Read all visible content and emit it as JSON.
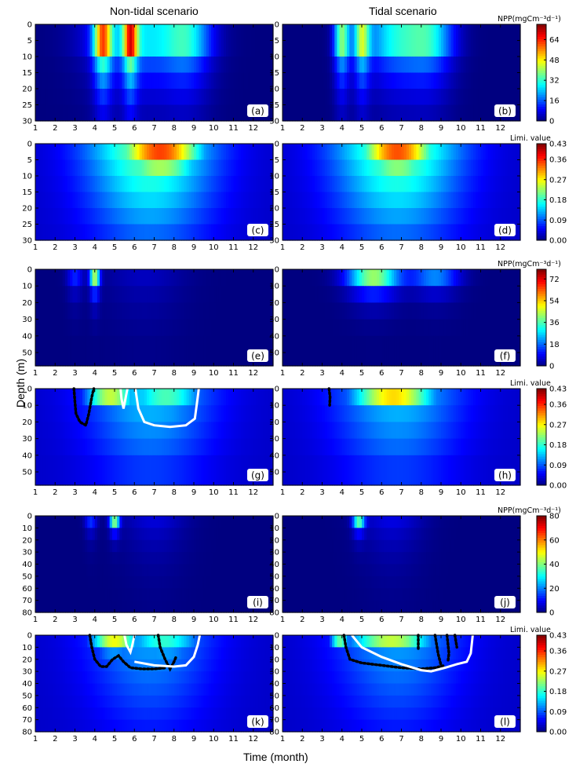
{
  "column_titles": [
    "Non-tidal scenario",
    "Tidal scenario"
  ],
  "xlabel": "Time (month)",
  "ylabel": "Depth (m)",
  "colorbar_labels": {
    "npp": "NPP(mgCm⁻³d⁻¹)",
    "limi": "Limi. value"
  },
  "colors": {
    "colormap": "jet",
    "contour_white": "#ffffff",
    "contour_black": "#000000"
  },
  "chart_data": [
    {
      "type": "heatmap",
      "panel": "(a)",
      "variable": "NPP",
      "scenario": "Non-tidal",
      "ylim": [
        30,
        0
      ],
      "yticks": [
        0,
        5,
        10,
        15,
        20,
        25,
        30
      ],
      "xticks": [
        1,
        2,
        3,
        4,
        5,
        6,
        7,
        8,
        9,
        10,
        11,
        12
      ],
      "cbar": {
        "ticks": [
          0,
          16,
          32,
          48,
          64
        ],
        "vmax": 76
      },
      "events": [
        {
          "center": 4.4,
          "width": 0.45,
          "peak": 76,
          "depth_scale": 11
        },
        {
          "center": 5.8,
          "width": 0.35,
          "peak": 70,
          "depth_scale": 11
        },
        {
          "center": 6.3,
          "width": 2.4,
          "peak": 40,
          "depth_scale": 12
        },
        {
          "center": 8.7,
          "width": 1.2,
          "peak": 34,
          "depth_scale": 12
        }
      ],
      "layer_levels": [
        0,
        10,
        15,
        20,
        25,
        30
      ],
      "contours": []
    },
    {
      "type": "heatmap",
      "panel": "(b)",
      "variable": "NPP",
      "scenario": "Tidal",
      "ylim": [
        30,
        0
      ],
      "yticks": [
        0,
        5,
        10,
        15,
        20,
        25,
        30
      ],
      "xticks": [
        1,
        2,
        3,
        4,
        5,
        6,
        7,
        8,
        9,
        10,
        11,
        12
      ],
      "cbar": {
        "ticks": [
          0,
          16,
          32,
          48,
          64
        ],
        "vmax": 76
      },
      "events": [
        {
          "center": 4.0,
          "width": 0.4,
          "peak": 58,
          "depth_scale": 11
        },
        {
          "center": 5.0,
          "width": 0.4,
          "peak": 56,
          "depth_scale": 11
        },
        {
          "center": 6.7,
          "width": 1.6,
          "peak": 44,
          "depth_scale": 11
        },
        {
          "center": 8.5,
          "width": 1.2,
          "peak": 38,
          "depth_scale": 11
        }
      ],
      "layer_levels": [
        0,
        10,
        15,
        20,
        25,
        30
      ],
      "contours": []
    },
    {
      "type": "heatmap",
      "panel": "(c)",
      "variable": "Limitation",
      "scenario": "Non-tidal",
      "ylim": [
        30,
        0
      ],
      "yticks": [
        0,
        5,
        10,
        15,
        20,
        25,
        30
      ],
      "xticks": [
        1,
        2,
        3,
        4,
        5,
        6,
        7,
        8,
        9,
        10,
        11,
        12
      ],
      "cbar": {
        "ticks": [
          0.0,
          0.09,
          0.18,
          0.27,
          0.36,
          0.43
        ],
        "vmax": 0.43
      },
      "background": 0.2,
      "events": [
        {
          "center": 7.3,
          "width": 2.2,
          "peak": 0.43,
          "depth_scale": 12
        }
      ],
      "layer_levels": [
        0,
        5,
        10,
        15,
        20,
        25,
        30
      ],
      "contours": []
    },
    {
      "type": "heatmap",
      "panel": "(d)",
      "variable": "Limitation",
      "scenario": "Tidal",
      "ylim": [
        30,
        0
      ],
      "yticks": [
        0,
        5,
        10,
        15,
        20,
        25,
        30
      ],
      "xticks": [
        1,
        2,
        3,
        4,
        5,
        6,
        7,
        8,
        9,
        10,
        11,
        12
      ],
      "cbar": {
        "ticks": [
          0.0,
          0.09,
          0.18,
          0.27,
          0.36,
          0.43
        ],
        "vmax": 0.43
      },
      "background": 0.2,
      "events": [
        {
          "center": 6.8,
          "width": 2.0,
          "peak": 0.43,
          "depth_scale": 11
        }
      ],
      "layer_levels": [
        0,
        5,
        10,
        15,
        20,
        25,
        30
      ],
      "contours": []
    },
    {
      "type": "heatmap",
      "panel": "(e)",
      "variable": "NPP",
      "scenario": "Non-tidal",
      "ylim": [
        58,
        0
      ],
      "yticks": [
        0,
        10,
        20,
        30,
        40,
        50
      ],
      "xticks": [
        1,
        2,
        3,
        4,
        5,
        6,
        7,
        8,
        9,
        10,
        11,
        12
      ],
      "cbar": {
        "ticks": [
          0,
          18,
          36,
          54,
          72
        ],
        "vmax": 80
      },
      "events": [
        {
          "center": 4.0,
          "width": 0.25,
          "peak": 80,
          "depth_scale": 8
        },
        {
          "center": 3.0,
          "width": 0.4,
          "peak": 20,
          "depth_scale": 10
        },
        {
          "center": 6.5,
          "width": 2.0,
          "peak": 6,
          "depth_scale": 25
        }
      ],
      "layer_levels": [
        0,
        10,
        20,
        30,
        40,
        58
      ],
      "contours": []
    },
    {
      "type": "heatmap",
      "panel": "(f)",
      "variable": "NPP",
      "scenario": "Tidal",
      "ylim": [
        58,
        0
      ],
      "yticks": [
        0,
        10,
        20,
        30,
        40,
        50
      ],
      "xticks": [
        1,
        2,
        3,
        4,
        5,
        6,
        7,
        8,
        9,
        10,
        11,
        12
      ],
      "cbar": {
        "ticks": [
          0,
          18,
          36,
          54,
          72
        ],
        "vmax": 80
      },
      "events": [
        {
          "center": 5.6,
          "width": 1.3,
          "peak": 78,
          "depth_scale": 8
        },
        {
          "center": 8.7,
          "width": 1.2,
          "peak": 38,
          "depth_scale": 8
        }
      ],
      "layer_levels": [
        0,
        10,
        20,
        30,
        40,
        58
      ],
      "contours": []
    },
    {
      "type": "heatmap",
      "panel": "(g)",
      "variable": "Limitation",
      "scenario": "Non-tidal",
      "ylim": [
        58,
        0
      ],
      "yticks": [
        0,
        10,
        20,
        30,
        40,
        50
      ],
      "xticks": [
        1,
        2,
        3,
        4,
        5,
        6,
        7,
        8,
        9,
        10,
        11,
        12
      ],
      "cbar": {
        "ticks": [
          0.0,
          0.09,
          0.18,
          0.27,
          0.36,
          0.43
        ],
        "vmax": 0.43
      },
      "background": 0.12,
      "events": [
        {
          "center": 4.8,
          "width": 1.3,
          "peak": 0.4,
          "depth_scale": 10
        },
        {
          "center": 7.6,
          "width": 2.0,
          "peak": 0.24,
          "depth_scale": 22
        }
      ],
      "layer_levels": [
        0,
        10,
        20,
        30,
        40,
        58
      ],
      "contours": [
        {
          "color": "black",
          "style": "dotted",
          "points": [
            [
              2.95,
              0
            ],
            [
              3.0,
              8
            ],
            [
              3.05,
              15
            ],
            [
              3.25,
              20
            ],
            [
              3.55,
              22
            ],
            [
              3.7,
              15
            ],
            [
              3.85,
              5
            ],
            [
              3.95,
              0
            ]
          ]
        },
        {
          "color": "white",
          "style": "solid",
          "points": [
            [
              6.05,
              0
            ],
            [
              6.2,
              12
            ],
            [
              6.5,
              20
            ],
            [
              7.0,
              22
            ],
            [
              7.8,
              23
            ],
            [
              8.6,
              22
            ],
            [
              9.05,
              18
            ],
            [
              9.2,
              5
            ],
            [
              9.25,
              0
            ]
          ]
        },
        {
          "color": "white",
          "style": "solid",
          "points": [
            [
              5.3,
              0
            ],
            [
              5.35,
              6
            ],
            [
              5.45,
              12
            ],
            [
              5.55,
              6
            ],
            [
              5.65,
              0
            ]
          ]
        }
      ]
    },
    {
      "type": "heatmap",
      "panel": "(h)",
      "variable": "Limitation",
      "scenario": "Tidal",
      "ylim": [
        58,
        0
      ],
      "yticks": [
        0,
        10,
        20,
        30,
        40,
        50
      ],
      "xticks": [
        1,
        2,
        3,
        4,
        5,
        6,
        7,
        8,
        9,
        10,
        11,
        12
      ],
      "cbar": {
        "ticks": [
          0.0,
          0.09,
          0.18,
          0.27,
          0.36,
          0.43
        ],
        "vmax": 0.43
      },
      "background": 0.12,
      "events": [
        {
          "center": 6.6,
          "width": 2.2,
          "peak": 0.43,
          "depth_scale": 12
        }
      ],
      "layer_levels": [
        0,
        10,
        20,
        30,
        40,
        58
      ],
      "contours": [
        {
          "color": "black",
          "style": "dotted",
          "points": [
            [
              3.35,
              0
            ],
            [
              3.4,
              5
            ],
            [
              3.38,
              10
            ]
          ]
        }
      ]
    },
    {
      "type": "heatmap",
      "panel": "(i)",
      "variable": "NPP",
      "scenario": "Non-tidal",
      "ylim": [
        80,
        0
      ],
      "yticks": [
        0,
        10,
        20,
        30,
        40,
        50,
        60,
        70,
        80
      ],
      "xticks": [
        1,
        2,
        3,
        4,
        5,
        6,
        7,
        8,
        9,
        10,
        11,
        12
      ],
      "cbar": {
        "ticks": [
          0,
          20,
          40,
          60,
          80
        ],
        "vmax": 80
      },
      "events": [
        {
          "center": 5.0,
          "width": 0.25,
          "peak": 80,
          "depth_scale": 7
        },
        {
          "center": 3.8,
          "width": 0.3,
          "peak": 22,
          "depth_scale": 10
        },
        {
          "center": 7.0,
          "width": 1.6,
          "peak": 8,
          "depth_scale": 30
        }
      ],
      "layer_levels": [
        0,
        10,
        20,
        30,
        40,
        50,
        60,
        70,
        80
      ],
      "contours": []
    },
    {
      "type": "heatmap",
      "panel": "(j)",
      "variable": "NPP",
      "scenario": "Tidal",
      "ylim": [
        80,
        0
      ],
      "yticks": [
        0,
        10,
        20,
        30,
        40,
        50,
        60,
        70,
        80
      ],
      "xticks": [
        1,
        2,
        3,
        4,
        5,
        6,
        7,
        8,
        9,
        10,
        11,
        12
      ],
      "cbar": {
        "ticks": [
          0,
          20,
          40,
          60,
          80
        ],
        "vmax": 80
      },
      "events": [
        {
          "center": 4.85,
          "width": 0.3,
          "peak": 70,
          "depth_scale": 7
        },
        {
          "center": 6.5,
          "width": 1.6,
          "peak": 9,
          "depth_scale": 30
        }
      ],
      "layer_levels": [
        0,
        10,
        20,
        30,
        40,
        50,
        60,
        70,
        80
      ],
      "contours": []
    },
    {
      "type": "heatmap",
      "panel": "(k)",
      "variable": "Limitation",
      "scenario": "Non-tidal",
      "ylim": [
        80,
        0
      ],
      "yticks": [
        0,
        10,
        20,
        30,
        40,
        50,
        60,
        70,
        80
      ],
      "xticks": [
        1,
        2,
        3,
        4,
        5,
        6,
        7,
        8,
        9,
        10,
        11,
        12
      ],
      "cbar": {
        "ticks": [
          0.0,
          0.09,
          0.18,
          0.27,
          0.36,
          0.43
        ],
        "vmax": 0.43
      },
      "background": 0.1,
      "events": [
        {
          "center": 5.0,
          "width": 1.2,
          "peak": 0.4,
          "depth_scale": 12
        },
        {
          "center": 7.5,
          "width": 2.0,
          "peak": 0.22,
          "depth_scale": 25
        }
      ],
      "layer_levels": [
        0,
        10,
        20,
        30,
        40,
        50,
        60,
        70,
        80
      ],
      "contours": [
        {
          "color": "black",
          "style": "dotted",
          "points": [
            [
              3.75,
              0
            ],
            [
              3.85,
              10
            ],
            [
              4.0,
              20
            ],
            [
              4.3,
              26
            ],
            [
              4.6,
              26
            ],
            [
              4.9,
              20
            ],
            [
              5.2,
              17
            ],
            [
              5.45,
              22
            ],
            [
              5.8,
              27
            ],
            [
              6.4,
              28
            ],
            [
              7.0,
              28
            ],
            [
              7.6,
              27
            ]
          ]
        },
        {
          "color": "black",
          "style": "dotted",
          "points": [
            [
              7.2,
              0
            ],
            [
              7.3,
              10
            ],
            [
              7.55,
              20
            ],
            [
              7.8,
              28
            ],
            [
              8.0,
              22
            ],
            [
              8.1,
              18
            ]
          ]
        },
        {
          "color": "white",
          "style": "solid",
          "points": [
            [
              6.0,
              22
            ],
            [
              7.0,
              25
            ],
            [
              8.0,
              26
            ],
            [
              8.6,
              25
            ],
            [
              9.0,
              18
            ],
            [
              9.2,
              8
            ],
            [
              9.3,
              0
            ]
          ]
        },
        {
          "color": "white",
          "style": "solid",
          "points": [
            [
              5.5,
              0
            ],
            [
              5.6,
              8
            ],
            [
              5.8,
              14
            ],
            [
              5.9,
              8
            ],
            [
              6.0,
              0
            ]
          ]
        }
      ]
    },
    {
      "type": "heatmap",
      "panel": "(l)",
      "variable": "Limitation",
      "scenario": "Tidal",
      "ylim": [
        80,
        0
      ],
      "yticks": [
        0,
        10,
        20,
        30,
        40,
        50,
        60,
        70,
        80
      ],
      "xticks": [
        1,
        2,
        3,
        4,
        5,
        6,
        7,
        8,
        9,
        10,
        11,
        12
      ],
      "cbar": {
        "ticks": [
          0.0,
          0.09,
          0.18,
          0.27,
          0.36,
          0.43
        ],
        "vmax": 0.43
      },
      "background": 0.1,
      "events": [
        {
          "center": 6.5,
          "width": 2.2,
          "peak": 0.4,
          "depth_scale": 10
        },
        {
          "center": 3.9,
          "width": 0.5,
          "peak": 0.38,
          "depth_scale": 8
        }
      ],
      "layer_levels": [
        0,
        10,
        20,
        30,
        40,
        50,
        60,
        70,
        80
      ],
      "contours": [
        {
          "color": "black",
          "style": "dotted",
          "points": [
            [
              4.1,
              0
            ],
            [
              4.2,
              10
            ],
            [
              4.4,
              20
            ],
            [
              5.0,
              23
            ],
            [
              6.0,
              25
            ],
            [
              7.0,
              27
            ],
            [
              8.0,
              28
            ],
            [
              8.7,
              27
            ],
            [
              9.2,
              25
            ]
          ]
        },
        {
          "color": "black",
          "style": "dotted",
          "points": [
            [
              7.85,
              0
            ],
            [
              7.85,
              12
            ]
          ]
        },
        {
          "color": "black",
          "style": "dotted",
          "points": [
            [
              8.7,
              0
            ],
            [
              8.85,
              15
            ],
            [
              9.0,
              25
            ]
          ]
        },
        {
          "color": "black",
          "style": "dotted",
          "points": [
            [
              9.3,
              0
            ],
            [
              9.4,
              15
            ],
            [
              9.35,
              22
            ]
          ]
        },
        {
          "color": "black",
          "style": "dotted",
          "points": [
            [
              9.7,
              0
            ],
            [
              9.8,
              10
            ]
          ]
        },
        {
          "color": "white",
          "style": "solid",
          "points": [
            [
              4.5,
              0
            ],
            [
              5.0,
              10
            ],
            [
              6.0,
              18
            ],
            [
              7.0,
              24
            ],
            [
              8.0,
              29
            ],
            [
              8.5,
              30
            ],
            [
              9.2,
              27
            ],
            [
              9.8,
              24
            ],
            [
              10.3,
              22
            ],
            [
              10.5,
              15
            ],
            [
              10.6,
              0
            ]
          ]
        }
      ]
    }
  ]
}
